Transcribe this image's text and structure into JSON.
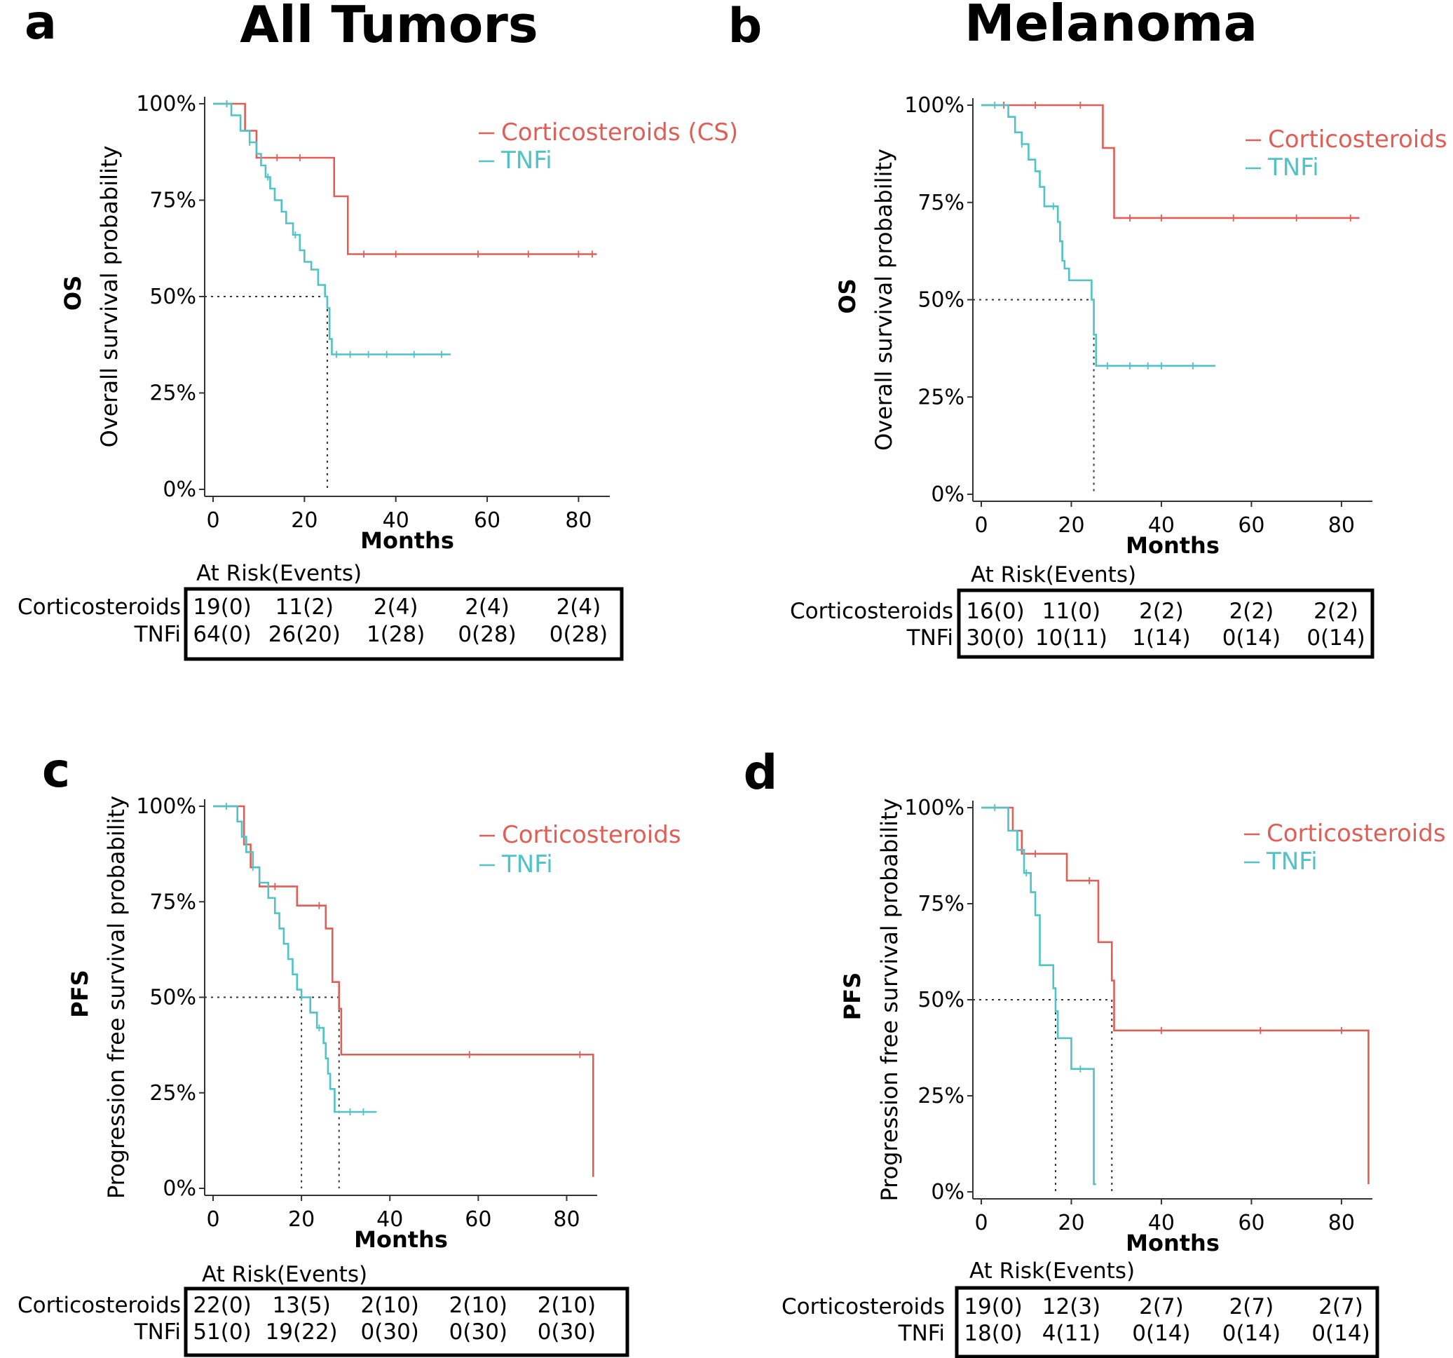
{
  "colors": {
    "corticosteroids": "#e05e55",
    "tnfi": "#4fc3c6",
    "axis": "#333333",
    "median": "#333333"
  },
  "titles": {
    "left": "All Tumors",
    "right": "Melanoma"
  },
  "chart_data": [
    {
      "panel": "a",
      "type": "line",
      "step": true,
      "ylabel_bold": "OS",
      "ylabel": "Overall survival probability",
      "xlabel": "Months",
      "xlim": [
        0,
        85
      ],
      "ylim": [
        0,
        1
      ],
      "xticks": [
        0,
        20,
        40,
        60,
        80
      ],
      "yticks": [
        0,
        0.25,
        0.5,
        0.75,
        1
      ],
      "ytick_labels": [
        "0%",
        "25%",
        "50%",
        "75%",
        "100%"
      ],
      "median_lines": [
        25
      ],
      "series": [
        {
          "name": "Corticosteroids (CS)",
          "key": "corticosteroids",
          "x": [
            0,
            7,
            9.5,
            26.5,
            29.5,
            84
          ],
          "y": [
            1,
            0.93,
            0.86,
            0.76,
            0.61,
            0.61
          ],
          "censor": [
            3,
            14,
            19,
            33,
            40,
            58,
            69,
            80,
            83
          ]
        },
        {
          "name": "TNFi",
          "key": "tnfi",
          "x": [
            0,
            4,
            6,
            8,
            9.5,
            10.5,
            11.5,
            12.5,
            13.5,
            15,
            16,
            17.5,
            19,
            20,
            21.5,
            23,
            24.5,
            25,
            25.5,
            26,
            52
          ],
          "y": [
            1,
            0.97,
            0.93,
            0.9,
            0.87,
            0.84,
            0.81,
            0.78,
            0.75,
            0.72,
            0.69,
            0.66,
            0.62,
            0.59,
            0.57,
            0.53,
            0.5,
            0.47,
            0.39,
            0.35,
            0.35
          ],
          "censor": [
            3,
            8,
            12,
            18,
            27,
            30,
            34,
            38,
            44,
            50
          ]
        }
      ],
      "risk_table": {
        "header": "At Risk(Events)",
        "rows": [
          {
            "label": "Corticosteroids",
            "values": [
              "19(0)",
              "11(2)",
              "2(4)",
              "2(4)",
              "2(4)"
            ]
          },
          {
            "label": "TNFi",
            "values": [
              "64(0)",
              "26(20)",
              "1(28)",
              "0(28)",
              "0(28)"
            ]
          }
        ]
      }
    },
    {
      "panel": "b",
      "type": "line",
      "step": true,
      "ylabel_bold": "OS",
      "ylabel": "Overall survival probability",
      "xlabel": "Months",
      "xlim": [
        0,
        85
      ],
      "ylim": [
        0,
        1
      ],
      "xticks": [
        0,
        20,
        40,
        60,
        80
      ],
      "yticks": [
        0,
        0.25,
        0.5,
        0.75,
        1
      ],
      "ytick_labels": [
        "0%",
        "25%",
        "50%",
        "75%",
        "100%"
      ],
      "median_lines": [
        25
      ],
      "series": [
        {
          "name": "Corticosteroids",
          "key": "corticosteroids",
          "x": [
            0,
            27,
            29.5,
            84
          ],
          "y": [
            1,
            0.89,
            0.71,
            0.71
          ],
          "censor": [
            5,
            12,
            22,
            33,
            40,
            56,
            70,
            82
          ]
        },
        {
          "name": "TNFi",
          "key": "tnfi",
          "x": [
            0,
            6,
            7.5,
            9,
            10.5,
            12,
            13,
            14,
            17,
            17.5,
            18,
            18.5,
            19.5,
            24.5,
            25,
            25.5,
            52
          ],
          "y": [
            1,
            0.97,
            0.93,
            0.9,
            0.86,
            0.83,
            0.79,
            0.74,
            0.7,
            0.65,
            0.6,
            0.58,
            0.55,
            0.5,
            0.41,
            0.33,
            0.33
          ],
          "censor": [
            3,
            9,
            16,
            28,
            33,
            37,
            40,
            47
          ]
        }
      ],
      "risk_table": {
        "header": "At Risk(Events)",
        "rows": [
          {
            "label": "Corticosteroids",
            "values": [
              "16(0)",
              "11(0)",
              "2(2)",
              "2(2)",
              "2(2)"
            ]
          },
          {
            "label": "TNFi",
            "values": [
              "30(0)",
              "10(11)",
              "1(14)",
              "0(14)",
              "0(14)"
            ]
          }
        ]
      }
    },
    {
      "panel": "c",
      "type": "line",
      "step": true,
      "ylabel_bold": "PFS",
      "ylabel": "Progression free survival probability",
      "xlabel": "Months",
      "xlim": [
        0,
        85
      ],
      "ylim": [
        0,
        1
      ],
      "xticks": [
        0,
        20,
        40,
        60,
        80
      ],
      "yticks": [
        0,
        0.25,
        0.5,
        0.75,
        1
      ],
      "ytick_labels": [
        "0%",
        "25%",
        "50%",
        "75%",
        "100%"
      ],
      "median_lines": [
        20,
        28.5
      ],
      "series": [
        {
          "name": "Corticosteroids",
          "key": "corticosteroids",
          "x": [
            0,
            7,
            8.5,
            10.5,
            19,
            25.5,
            27,
            28.5,
            29,
            86
          ],
          "y": [
            1,
            0.9,
            0.84,
            0.79,
            0.74,
            0.68,
            0.54,
            0.47,
            0.35,
            0.03
          ],
          "censor": [
            14,
            24,
            58,
            83
          ]
        },
        {
          "name": "TNFi",
          "key": "tnfi",
          "x": [
            0,
            5.5,
            6.5,
            7.5,
            9,
            10.5,
            12.5,
            14,
            15,
            16,
            17,
            18,
            19,
            20,
            22,
            23.5,
            25,
            25.5,
            26,
            26.5,
            27.5,
            37
          ],
          "y": [
            1,
            0.96,
            0.92,
            0.88,
            0.84,
            0.8,
            0.76,
            0.72,
            0.68,
            0.64,
            0.6,
            0.56,
            0.52,
            0.5,
            0.46,
            0.42,
            0.38,
            0.34,
            0.3,
            0.26,
            0.2,
            0.2
          ],
          "censor": [
            3,
            9,
            20,
            24,
            31,
            34
          ]
        }
      ],
      "risk_table": {
        "header": "At Risk(Events)",
        "rows": [
          {
            "label": "Corticosteroids",
            "values": [
              "22(0)",
              "13(5)",
              "2(10)",
              "2(10)",
              "2(10)"
            ]
          },
          {
            "label": "TNFi",
            "values": [
              "51(0)",
              "19(22)",
              "0(30)",
              "0(30)",
              "0(30)"
            ]
          }
        ]
      }
    },
    {
      "panel": "d",
      "type": "line",
      "step": true,
      "ylabel_bold": "PFS",
      "ylabel": "Progression free survival probability",
      "xlabel": "Months",
      "xlim": [
        0,
        85
      ],
      "ylim": [
        0,
        1
      ],
      "xticks": [
        0,
        20,
        40,
        60,
        80
      ],
      "yticks": [
        0,
        0.25,
        0.5,
        0.75,
        1
      ],
      "ytick_labels": [
        "0%",
        "25%",
        "50%",
        "75%",
        "100%"
      ],
      "median_lines": [
        16.5,
        29
      ],
      "series": [
        {
          "name": "Corticosteroids",
          "key": "corticosteroids",
          "x": [
            0,
            7,
            9,
            19,
            26,
            29,
            29.5,
            86
          ],
          "y": [
            1,
            0.94,
            0.88,
            0.81,
            0.65,
            0.55,
            0.42,
            0.02
          ],
          "censor": [
            12,
            24,
            40,
            62,
            80
          ]
        },
        {
          "name": "TNFi",
          "key": "tnfi",
          "x": [
            0,
            6,
            8,
            9.5,
            11,
            12,
            13,
            16,
            16.5,
            17,
            20,
            25,
            25.5
          ],
          "y": [
            1,
            0.94,
            0.89,
            0.83,
            0.78,
            0.72,
            0.59,
            0.53,
            0.47,
            0.4,
            0.32,
            0.02,
            0.02
          ],
          "censor": [
            3,
            10,
            22
          ]
        }
      ],
      "risk_table": {
        "header": "At Risk(Events)",
        "rows": [
          {
            "label": "Corticosteroids",
            "values": [
              "19(0)",
              "12(3)",
              "2(7)",
              "2(7)",
              "2(7)"
            ]
          },
          {
            "label": "TNFi",
            "values": [
              "18(0)",
              "4(11)",
              "0(14)",
              "0(14)",
              "0(14)"
            ]
          }
        ]
      }
    }
  ]
}
